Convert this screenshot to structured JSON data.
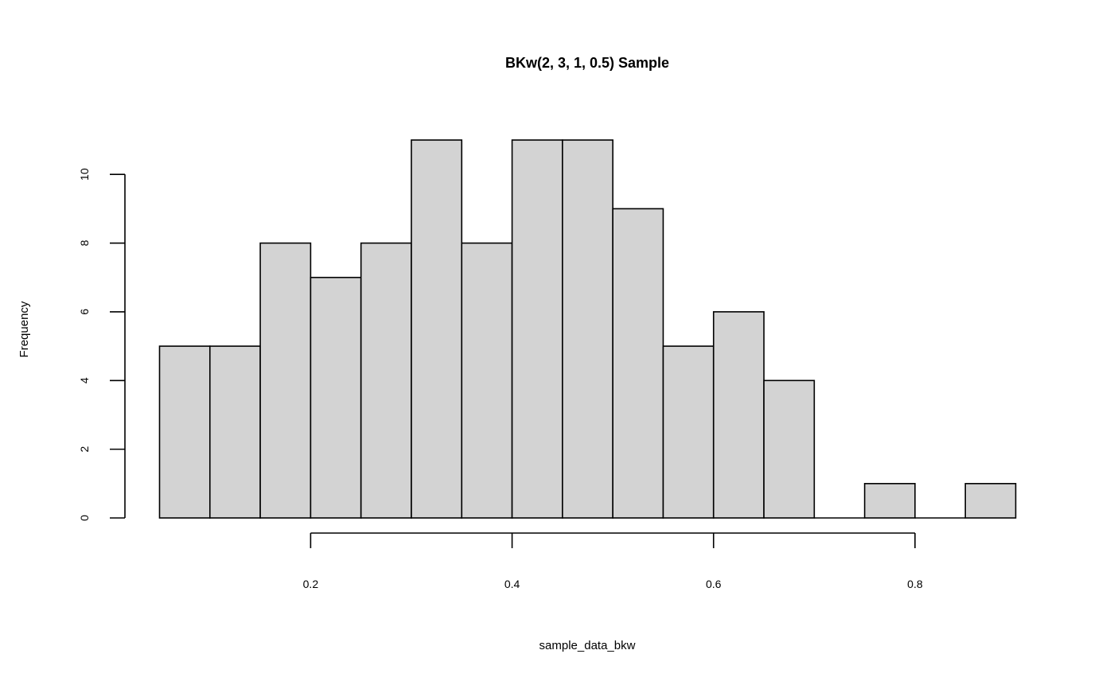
{
  "chart_data": {
    "type": "bar",
    "title": "BKw(2, 3, 1, 0.5) Sample",
    "xlabel": "sample_data_bkw",
    "ylabel": "Frequency",
    "bin_edges": [
      0.05,
      0.1,
      0.15,
      0.2,
      0.25,
      0.3,
      0.35,
      0.4,
      0.45,
      0.5,
      0.55,
      0.6,
      0.65,
      0.7,
      0.75,
      0.8,
      0.85,
      0.9
    ],
    "values": [
      5,
      5,
      8,
      7,
      8,
      11,
      8,
      11,
      11,
      9,
      5,
      6,
      4,
      0,
      1,
      0,
      1
    ],
    "xlim": [
      0.05,
      0.9
    ],
    "ylim": [
      0,
      11
    ],
    "x_ticks": [
      0.2,
      0.4,
      0.6,
      0.8
    ],
    "x_tick_labels": [
      "0.2",
      "0.4",
      "0.6",
      "0.8"
    ],
    "y_ticks": [
      0,
      2,
      4,
      6,
      8,
      10
    ],
    "y_tick_labels": [
      "0",
      "2",
      "4",
      "6",
      "8",
      "10"
    ],
    "bar_fill": "#d3d3d3",
    "bar_stroke": "#000000",
    "grid": false,
    "legend": "none"
  }
}
